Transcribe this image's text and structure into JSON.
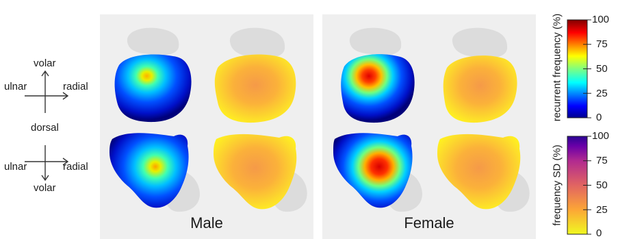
{
  "orientation_top": {
    "up": "volar",
    "left": "ulnar",
    "right": "radial",
    "down": "dorsal"
  },
  "orientation_bottom": {
    "left": "ulnar",
    "right": "radial",
    "down": "volar"
  },
  "panels": [
    {
      "title": "Male"
    },
    {
      "title": "Female"
    }
  ],
  "colorbars": [
    {
      "title": "recurrent frequency (%)",
      "ticks": [
        "0",
        "25",
        "50",
        "75",
        "100"
      ],
      "colormap": "jet"
    },
    {
      "title": "frequency SD (%)",
      "ticks": [
        "0",
        "25",
        "50",
        "75",
        "100"
      ],
      "colormap": "plasma-reversed"
    }
  ]
}
